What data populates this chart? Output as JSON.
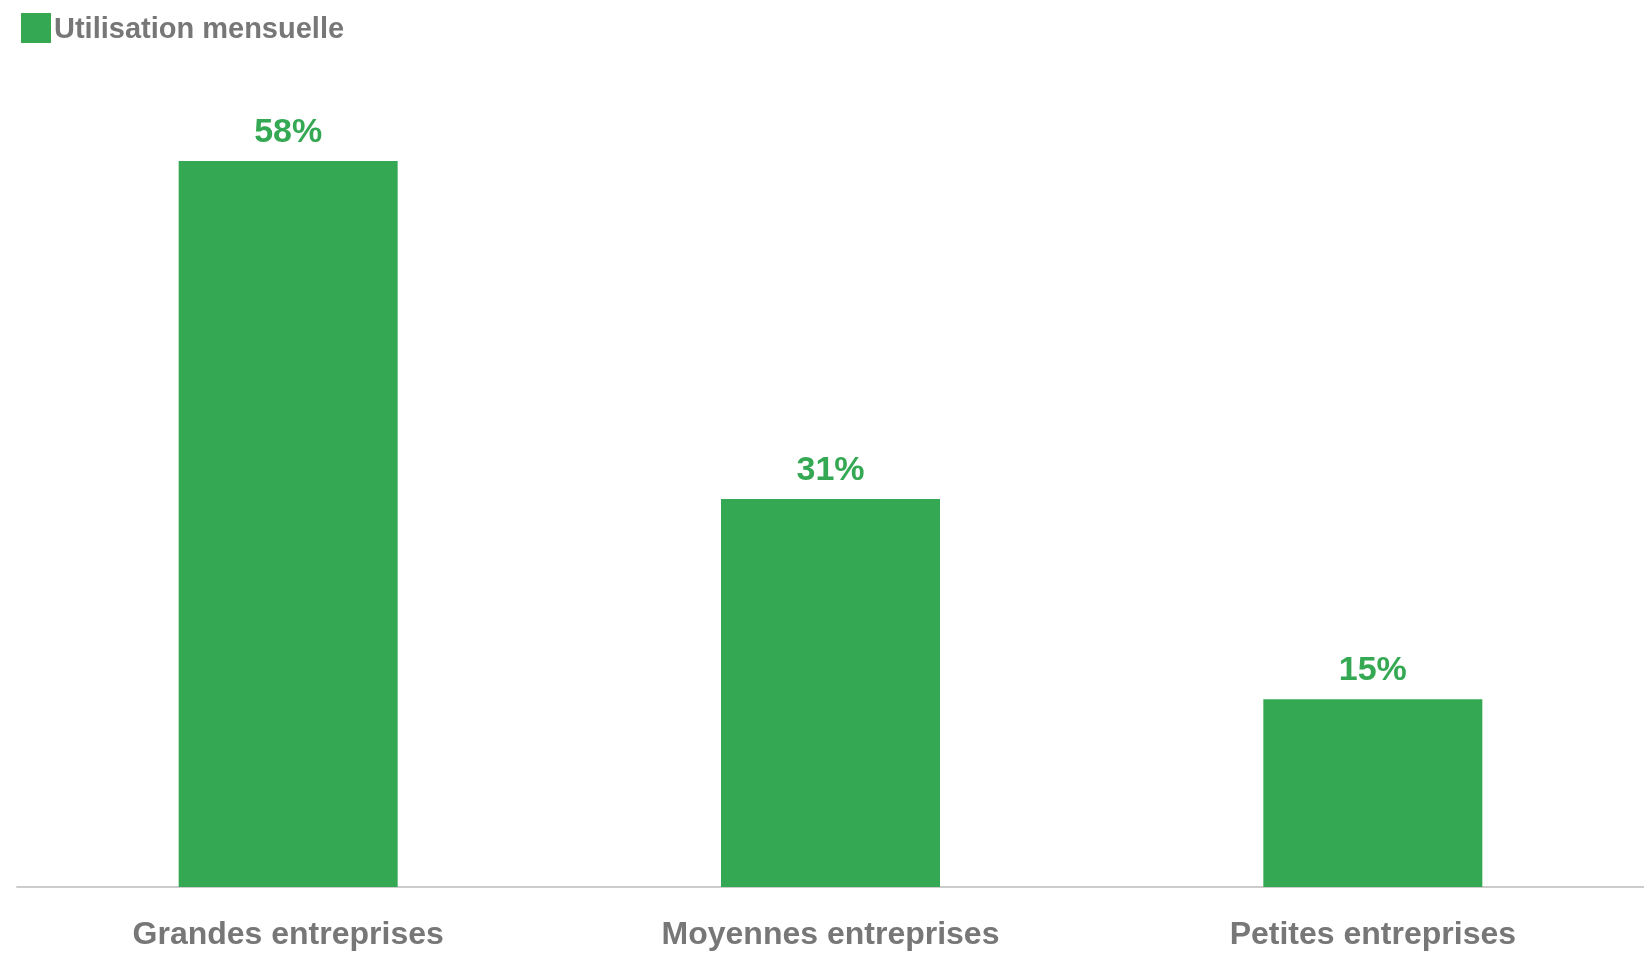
{
  "chart_data": {
    "type": "bar",
    "categories": [
      "Grandes entreprises",
      "Moyennes entreprises",
      "Petites entreprises"
    ],
    "series": [
      {
        "name": "Utilisation mensuelle",
        "color": "#34a853",
        "values": [
          58,
          31,
          15
        ],
        "value_labels": [
          "58%",
          "31%",
          "15%"
        ]
      }
    ],
    "legend": "top left",
    "grid": false
  }
}
